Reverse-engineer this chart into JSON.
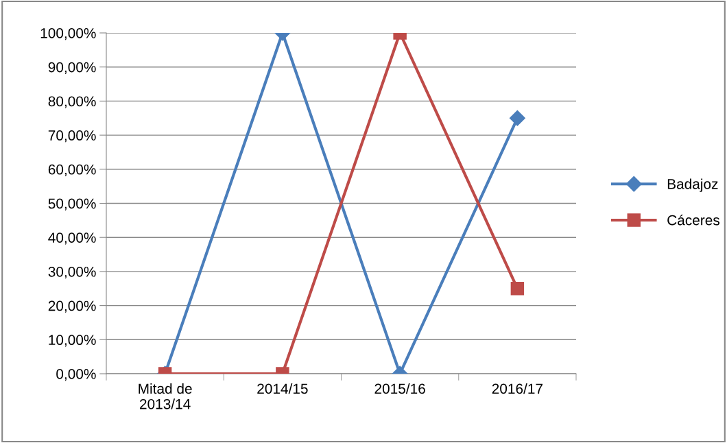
{
  "chart_data": {
    "type": "line",
    "categories": [
      "Mitad de\n2013/14",
      "2014/15",
      "2015/16",
      "2016/17"
    ],
    "series": [
      {
        "name": "Badajoz",
        "color": "#4a7ebb",
        "marker": "diamond",
        "values": [
          0,
          100,
          0,
          75
        ]
      },
      {
        "name": "Cáceres",
        "color": "#be4b48",
        "marker": "square",
        "values": [
          0,
          0,
          100,
          25
        ]
      }
    ],
    "ylim": [
      0,
      100
    ],
    "yticks": [
      {
        "value": 0,
        "label": "0,00%"
      },
      {
        "value": 10,
        "label": "10,00%"
      },
      {
        "value": 20,
        "label": "20,00%"
      },
      {
        "value": 30,
        "label": "30,00%"
      },
      {
        "value": 40,
        "label": "40,00%"
      },
      {
        "value": 50,
        "label": "50,00%"
      },
      {
        "value": 60,
        "label": "60,00%"
      },
      {
        "value": 70,
        "label": "70,00%"
      },
      {
        "value": 80,
        "label": "80,00%"
      },
      {
        "value": 90,
        "label": "90,00%"
      },
      {
        "value": 100,
        "label": "100,00%"
      }
    ],
    "grid": "y",
    "legend": "right",
    "line_style": "solid"
  }
}
